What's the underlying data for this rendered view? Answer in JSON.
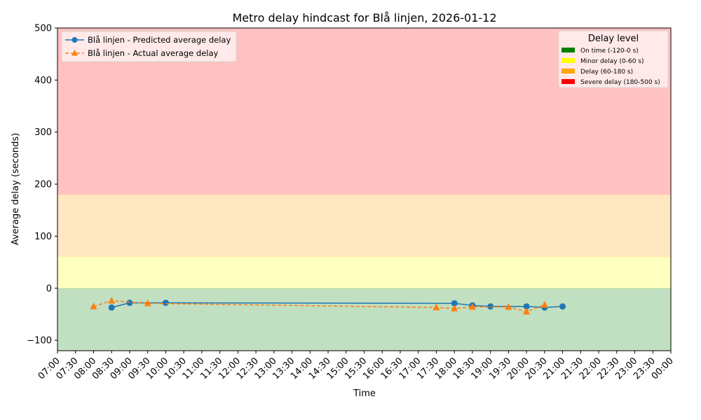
{
  "chart_data": {
    "type": "line",
    "title": "Metro delay hindcast for Blå linjen, 2026-01-12",
    "xlabel": "Time",
    "ylabel": "Average delay (seconds)",
    "ylim": [
      -120,
      500
    ],
    "xlim": [
      "07:00",
      "00:00"
    ],
    "grid": false,
    "yticks": [
      -100,
      0,
      100,
      200,
      300,
      400,
      500
    ],
    "xticks": [
      "07:00",
      "07:30",
      "08:00",
      "08:30",
      "09:00",
      "09:30",
      "10:00",
      "10:30",
      "11:00",
      "11:30",
      "12:00",
      "12:30",
      "13:00",
      "13:30",
      "14:00",
      "14:30",
      "15:00",
      "15:30",
      "16:00",
      "16:30",
      "17:00",
      "17:30",
      "18:00",
      "18:30",
      "19:00",
      "19:30",
      "20:00",
      "20:30",
      "21:00",
      "21:30",
      "22:00",
      "22:30",
      "23:00",
      "23:30",
      "00:00"
    ],
    "series": [
      {
        "name": "Blå linjen - Predicted average delay",
        "color": "#1f77b4",
        "marker": "circle",
        "linestyle": "solid",
        "points": [
          {
            "x": "08:30",
            "y": -37
          },
          {
            "x": "09:00",
            "y": -28
          },
          {
            "x": "10:00",
            "y": -28
          },
          {
            "x": "18:00",
            "y": -29
          },
          {
            "x": "18:30",
            "y": -33
          },
          {
            "x": "19:00",
            "y": -35
          },
          {
            "x": "20:00",
            "y": -35
          },
          {
            "x": "20:30",
            "y": -37
          },
          {
            "x": "21:00",
            "y": -35
          }
        ]
      },
      {
        "name": "Blå linjen - Actual average delay",
        "color": "#ff7f0e",
        "marker": "triangle",
        "linestyle": "dashed",
        "points": [
          {
            "x": "08:00",
            "y": -35
          },
          {
            "x": "08:30",
            "y": -24
          },
          {
            "x": "09:30",
            "y": -29
          },
          {
            "x": "17:30",
            "y": -37
          },
          {
            "x": "18:00",
            "y": -39
          },
          {
            "x": "18:30",
            "y": -36
          },
          {
            "x": "19:30",
            "y": -36
          },
          {
            "x": "20:00",
            "y": -45
          },
          {
            "x": "20:30",
            "y": -32
          }
        ]
      }
    ],
    "bands": [
      {
        "label": "On time (-120-0 s)",
        "from": -120,
        "to": 0,
        "color": "#008000",
        "fill": "#c1dfc1"
      },
      {
        "label": "Minor delay (0-60 s)",
        "from": 0,
        "to": 60,
        "color": "#ffff00",
        "fill": "#ffffc1"
      },
      {
        "label": "Delay (60-180 s)",
        "from": 60,
        "to": 180,
        "color": "#ffa500",
        "fill": "#ffe7c1"
      },
      {
        "label": "Severe delay (180-500 s)",
        "from": 180,
        "to": 500,
        "color": "#ff0000",
        "fill": "#ffc1c1"
      }
    ],
    "legend_series_position": "upper left",
    "legend_bands_title": "Delay level",
    "legend_bands_position": "upper right"
  }
}
